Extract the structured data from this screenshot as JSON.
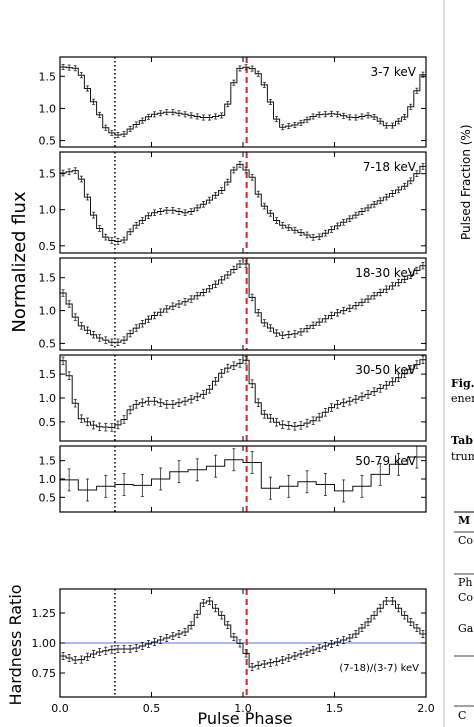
{
  "chart_data": {
    "type": "line",
    "xlabel": "Pulse Phase",
    "shared_ylabel": "Normalized flux",
    "x_ticks": [
      "0.0",
      "0.5",
      "1.0",
      "1.5",
      "2.0"
    ],
    "xlim": [
      0,
      2
    ],
    "reference_lines": {
      "dotted_phase": 0.3,
      "dashed_phase": 1.02,
      "dashed_color": "#d62728"
    },
    "panels": [
      {
        "label": "3-7 keV",
        "ylim": [
          0.4,
          1.8
        ],
        "yticks": [
          "0.5",
          "1.0",
          "1.5"
        ],
        "err": 0.04,
        "x": [
          0.0,
          0.1,
          0.2,
          0.25,
          0.3,
          0.35,
          0.4,
          0.5,
          0.6,
          0.7,
          0.8,
          0.9,
          0.97,
          1.0,
          1.05,
          1.1,
          1.2,
          1.3,
          1.4,
          1.5,
          1.6,
          1.7,
          1.8,
          1.9,
          2.0
        ],
        "y": [
          1.65,
          1.62,
          1.0,
          0.7,
          0.58,
          0.6,
          0.72,
          0.9,
          0.95,
          0.9,
          0.85,
          0.9,
          1.6,
          1.65,
          1.62,
          1.5,
          0.7,
          0.75,
          0.9,
          0.92,
          0.85,
          0.9,
          0.7,
          0.9,
          1.65
        ]
      },
      {
        "label": "7-18 keV",
        "ylim": [
          0.4,
          1.8
        ],
        "yticks": [
          "0.5",
          "1.0",
          "1.5"
        ],
        "err": 0.04,
        "x": [
          0.0,
          0.1,
          0.2,
          0.25,
          0.3,
          0.35,
          0.4,
          0.5,
          0.6,
          0.7,
          0.8,
          0.9,
          0.97,
          1.0,
          1.05,
          1.1,
          1.2,
          1.3,
          1.4,
          1.5,
          1.6,
          1.7,
          1.8,
          1.9,
          2.0
        ],
        "y": [
          1.5,
          1.55,
          0.8,
          0.62,
          0.55,
          0.58,
          0.75,
          0.95,
          1.0,
          0.95,
          1.1,
          1.3,
          1.65,
          1.6,
          1.45,
          1.1,
          0.8,
          0.7,
          0.6,
          0.75,
          0.9,
          1.05,
          1.2,
          1.35,
          1.65
        ]
      },
      {
        "label": "18-30 keV",
        "ylim": [
          0.4,
          1.8
        ],
        "yticks": [
          "0.5",
          "1.0",
          "1.5"
        ],
        "err": 0.05,
        "x": [
          0.0,
          0.05,
          0.1,
          0.2,
          0.3,
          0.35,
          0.4,
          0.5,
          0.6,
          0.7,
          0.8,
          0.9,
          1.0,
          1.02,
          1.05,
          1.1,
          1.2,
          1.3,
          1.4,
          1.5,
          1.6,
          1.7,
          1.8,
          1.9,
          2.0
        ],
        "y": [
          1.35,
          1.1,
          0.8,
          0.6,
          0.5,
          0.55,
          0.7,
          0.9,
          1.05,
          1.15,
          1.3,
          1.5,
          1.75,
          1.7,
          1.2,
          0.85,
          0.62,
          0.65,
          0.8,
          0.95,
          1.05,
          1.2,
          1.35,
          1.5,
          1.72
        ]
      },
      {
        "label": "30-50 keV",
        "ylim": [
          0.1,
          1.9
        ],
        "yticks": [
          "0.5",
          "1.0",
          "1.5"
        ],
        "err": 0.08,
        "x": [
          0.0,
          0.03,
          0.06,
          0.1,
          0.2,
          0.3,
          0.35,
          0.4,
          0.5,
          0.6,
          0.7,
          0.8,
          0.9,
          1.0,
          1.02,
          1.05,
          1.1,
          1.2,
          1.3,
          1.4,
          1.5,
          1.6,
          1.7,
          1.8,
          1.9,
          2.0
        ],
        "y": [
          1.75,
          1.8,
          1.3,
          0.6,
          0.4,
          0.38,
          0.55,
          0.85,
          0.95,
          0.85,
          0.95,
          1.1,
          1.6,
          1.75,
          1.8,
          1.3,
          0.7,
          0.45,
          0.4,
          0.55,
          0.85,
          0.95,
          1.1,
          1.3,
          1.55,
          1.85
        ]
      },
      {
        "label": "50-79 keV",
        "ylim": [
          0.1,
          1.9
        ],
        "yticks": [
          "0.5",
          "1.0",
          "1.5"
        ],
        "err": 0.3,
        "x": [
          0.0,
          0.1,
          0.2,
          0.3,
          0.4,
          0.5,
          0.6,
          0.7,
          0.8,
          0.9,
          1.0,
          1.05,
          1.1,
          1.2,
          1.3,
          1.4,
          1.5,
          1.6,
          1.7,
          1.8,
          1.9,
          2.0
        ],
        "y": [
          1.2,
          0.75,
          0.65,
          0.95,
          0.75,
          0.9,
          1.1,
          1.3,
          1.2,
          1.5,
          1.55,
          1.45,
          0.75,
          0.75,
          0.85,
          1.0,
          0.7,
          0.65,
          0.95,
          1.3,
          1.5,
          1.7
        ]
      },
      {
        "label": "(7-18)/(3-7) keV",
        "ylim": [
          0.55,
          1.45
        ],
        "yticks": [
          "0.75",
          "1.00",
          "1.25"
        ],
        "err": 0.03,
        "ylabel": "Hardness Ratio",
        "hline": 1.0,
        "hline_color": "#5b6ee1",
        "x": [
          0.0,
          0.1,
          0.2,
          0.3,
          0.4,
          0.5,
          0.6,
          0.7,
          0.8,
          0.9,
          0.95,
          1.0,
          1.05,
          1.1,
          1.2,
          1.3,
          1.4,
          1.5,
          1.6,
          1.7,
          1.8,
          1.9,
          2.0
        ],
        "y": [
          0.9,
          0.85,
          0.92,
          0.95,
          0.95,
          1.0,
          1.05,
          1.1,
          1.38,
          1.2,
          1.05,
          0.97,
          0.8,
          0.82,
          0.85,
          0.9,
          0.95,
          1.0,
          1.05,
          1.2,
          1.38,
          1.2,
          1.05
        ]
      }
    ]
  },
  "side": {
    "top_label": "Pulsed Fraction (%)",
    "fig_label": "Fig.",
    "fig_text": "ener",
    "tab_label": "Tab",
    "tab_text": "trum",
    "m_label": "M",
    "co_label": "Co",
    "ph_label": "Ph",
    "co2_label": "Co",
    "ga_label": "Ga",
    "c_label": "C"
  }
}
